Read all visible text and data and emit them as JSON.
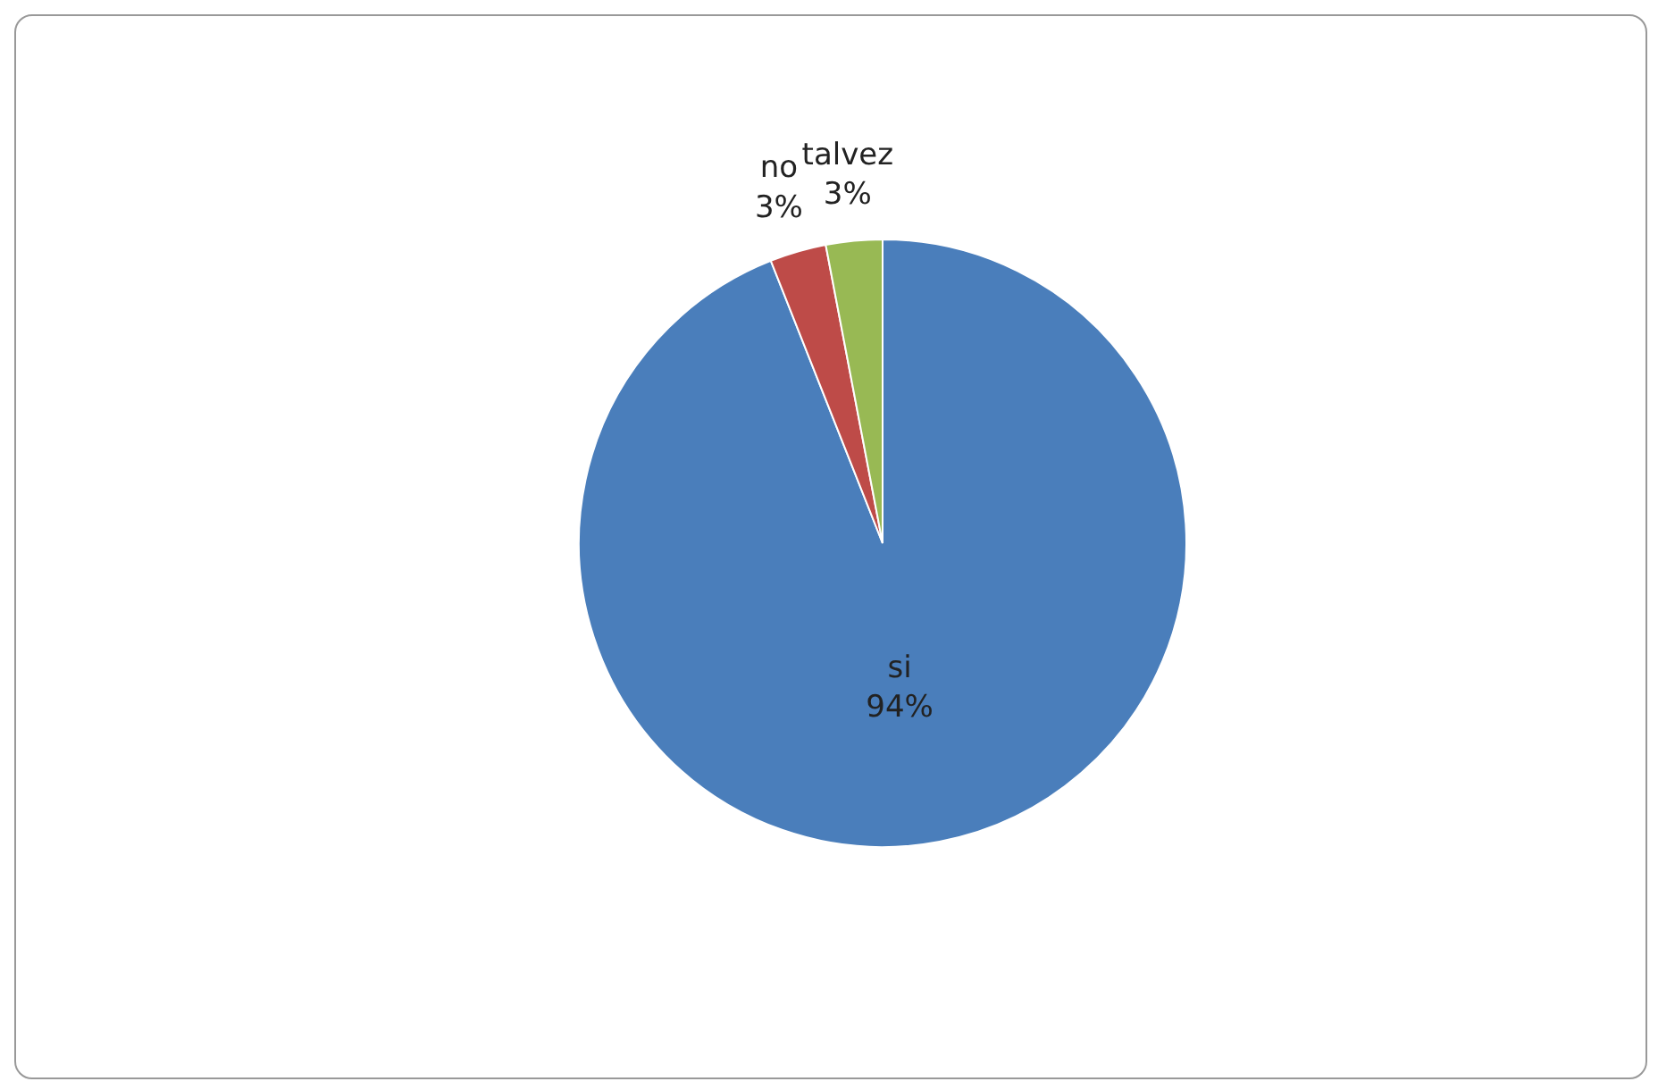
{
  "chart_data": {
    "type": "pie",
    "categories": [
      "si",
      "no",
      "talvez"
    ],
    "values": [
      94,
      3,
      3
    ],
    "colors": [
      "#4a7ebb",
      "#be4b48",
      "#98b954"
    ],
    "value_labels": [
      "94%",
      "3%",
      "3%"
    ],
    "legend": false
  }
}
